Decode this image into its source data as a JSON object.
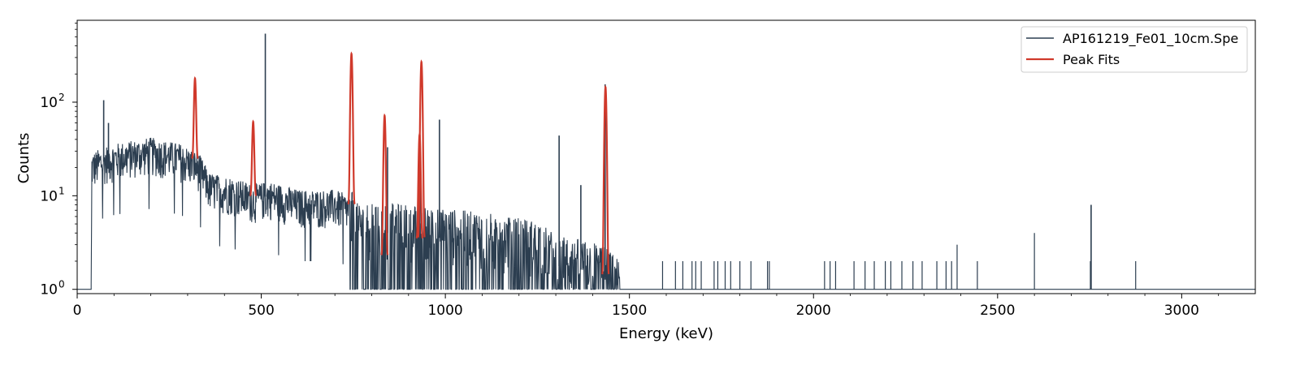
{
  "chart_data": {
    "type": "line",
    "xlabel": "Energy (keV)",
    "ylabel": "Counts",
    "x_ticks": [
      0,
      500,
      1000,
      1500,
      2000,
      2500,
      3000
    ],
    "y_ticks": [
      {
        "value": 1,
        "label": "10",
        "exp": "0"
      },
      {
        "value": 10,
        "label": "10",
        "exp": "1"
      },
      {
        "value": 100,
        "label": "10",
        "exp": "2"
      }
    ],
    "xlim": [
      0,
      3200
    ],
    "ylim": [
      0.9,
      750
    ],
    "yscale": "log",
    "legend_position": "top-right",
    "series": [
      {
        "name": "AP161219_Fe01_10cm.Spe",
        "color": "#2c3e50",
        "baseline_level": 1,
        "onset_keV": 38,
        "continuum": [
          [
            38,
            1
          ],
          [
            40,
            20
          ],
          [
            80,
            24
          ],
          [
            150,
            27
          ],
          [
            200,
            29
          ],
          [
            280,
            25
          ],
          [
            330,
            20
          ],
          [
            360,
            12
          ],
          [
            420,
            11
          ],
          [
            480,
            9
          ],
          [
            520,
            10
          ],
          [
            600,
            8
          ],
          [
            700,
            8
          ],
          [
            740,
            7
          ],
          [
            760,
            4
          ],
          [
            850,
            4
          ],
          [
            1000,
            3.5
          ],
          [
            1150,
            3
          ],
          [
            1260,
            2.5
          ],
          [
            1300,
            1.8
          ],
          [
            1420,
            1.5
          ],
          [
            1450,
            1.2
          ],
          [
            1470,
            1
          ]
        ],
        "peaks": [
          {
            "energy": 72,
            "counts": 105
          },
          {
            "energy": 85,
            "counts": 60
          },
          {
            "energy": 511,
            "counts": 540
          },
          {
            "energy": 843,
            "counts": 33
          },
          {
            "energy": 931,
            "counts": 45
          },
          {
            "energy": 984,
            "counts": 65
          },
          {
            "energy": 1309,
            "counts": 44
          },
          {
            "energy": 1368,
            "counts": 13
          },
          {
            "energy": 1434,
            "counts": 155
          },
          {
            "energy": 2754,
            "counts": 8
          }
        ],
        "isolated_events": [
          {
            "energy": 1590,
            "counts": 2
          },
          {
            "energy": 1625,
            "counts": 2
          },
          {
            "energy": 1645,
            "counts": 2
          },
          {
            "energy": 1670,
            "counts": 2
          },
          {
            "energy": 1680,
            "counts": 2
          },
          {
            "energy": 1695,
            "counts": 2
          },
          {
            "energy": 1730,
            "counts": 2
          },
          {
            "energy": 1740,
            "counts": 2
          },
          {
            "energy": 1760,
            "counts": 2
          },
          {
            "energy": 1775,
            "counts": 2
          },
          {
            "energy": 1800,
            "counts": 2
          },
          {
            "energy": 1830,
            "counts": 2
          },
          {
            "energy": 1875,
            "counts": 2
          },
          {
            "energy": 1880,
            "counts": 2
          },
          {
            "energy": 2030,
            "counts": 2
          },
          {
            "energy": 2045,
            "counts": 2
          },
          {
            "energy": 2060,
            "counts": 2
          },
          {
            "energy": 2110,
            "counts": 2
          },
          {
            "energy": 2140,
            "counts": 2
          },
          {
            "energy": 2165,
            "counts": 2
          },
          {
            "energy": 2195,
            "counts": 2
          },
          {
            "energy": 2210,
            "counts": 2
          },
          {
            "energy": 2240,
            "counts": 2
          },
          {
            "energy": 2270,
            "counts": 2
          },
          {
            "energy": 2295,
            "counts": 2
          },
          {
            "energy": 2335,
            "counts": 2
          },
          {
            "energy": 2360,
            "counts": 2
          },
          {
            "energy": 2375,
            "counts": 2
          },
          {
            "energy": 2390,
            "counts": 3
          },
          {
            "energy": 2445,
            "counts": 2
          },
          {
            "energy": 2600,
            "counts": 4
          },
          {
            "energy": 2752,
            "counts": 2
          },
          {
            "energy": 2875,
            "counts": 2
          }
        ]
      },
      {
        "name": "Peak Fits",
        "color": "#d0392b",
        "fits": [
          {
            "energy": 320,
            "height": 180,
            "base": 25
          },
          {
            "energy": 478,
            "height": 62,
            "base": 10
          },
          {
            "energy": 745,
            "height": 330,
            "base": 8
          },
          {
            "energy": 835,
            "height": 72,
            "base": 2.3
          },
          {
            "energy": 930,
            "height": 45,
            "base": 3.5
          },
          {
            "energy": 935,
            "height": 270,
            "base": 3.5
          },
          {
            "energy": 1435,
            "height": 145,
            "base": 1.4
          }
        ]
      }
    ]
  }
}
